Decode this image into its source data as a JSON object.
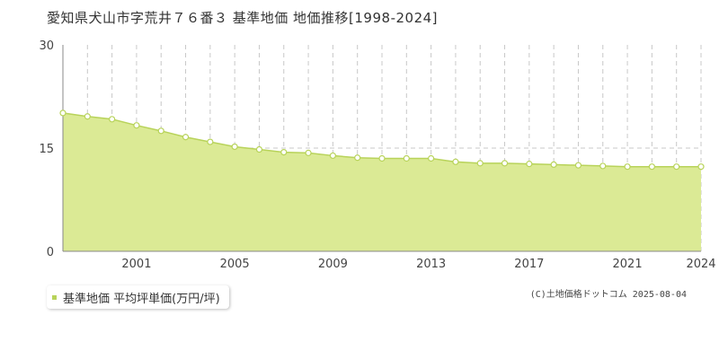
{
  "title": "愛知県犬山市字荒井７６番３ 基準地価 地価推移[1998-2024]",
  "legend": {
    "label": "基準地価 平均坪単価(万円/坪)"
  },
  "credit": "(C)土地価格ドットコム 2025-08-04",
  "colors": {
    "area_fill": "#dbea95",
    "line": "#b8d35a",
    "marker_fill": "#ffffff",
    "grid": "#c8c8c8",
    "axis": "#888888",
    "plot_bg": "#ffffff"
  },
  "chart_data": {
    "type": "area",
    "x": [
      1998,
      1999,
      2000,
      2001,
      2002,
      2003,
      2004,
      2005,
      2006,
      2007,
      2008,
      2009,
      2010,
      2011,
      2012,
      2013,
      2014,
      2015,
      2016,
      2017,
      2018,
      2019,
      2020,
      2021,
      2022,
      2023,
      2024
    ],
    "series": [
      {
        "values": [
          20.1,
          19.6,
          19.2,
          18.3,
          17.5,
          16.6,
          15.9,
          15.2,
          14.8,
          14.4,
          14.3,
          13.9,
          13.6,
          13.5,
          13.5,
          13.5,
          13.0,
          12.8,
          12.8,
          12.7,
          12.6,
          12.5,
          12.4,
          12.3,
          12.3,
          12.3,
          12.3
        ]
      }
    ],
    "xticks": [
      "2001",
      "2005",
      "2009",
      "2013",
      "2017",
      "2021",
      "2024"
    ],
    "yticks": [
      "0",
      "15",
      "30"
    ],
    "ylim": [
      0,
      30
    ],
    "xlim": [
      1998,
      2024
    ],
    "grid": true
  }
}
